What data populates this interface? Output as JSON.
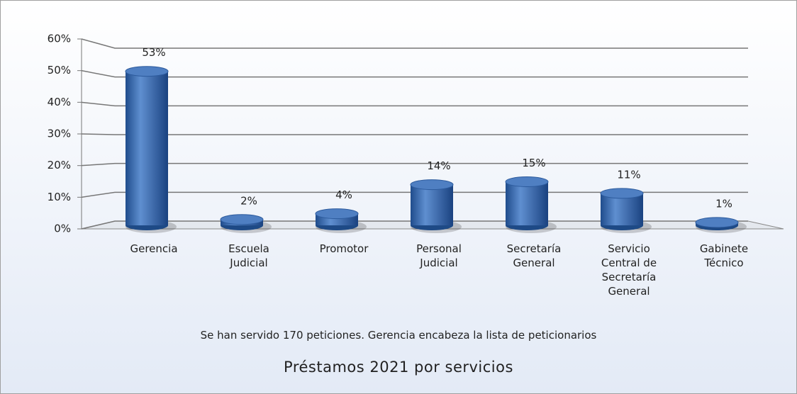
{
  "chart_data": {
    "type": "bar3d",
    "title": "Préstamos 2021 por servicios",
    "subtitle": "Se han servido 170 peticiones. Gerencia encabeza la lista de peticionarios",
    "categories": [
      "Gerencia",
      "Escuela Judicial",
      "Promotor",
      "Personal Judicial",
      "Secretaría General",
      "Servicio Central de Secretaría General",
      "Gabinete Técnico"
    ],
    "values": [
      53,
      2,
      4,
      14,
      15,
      11,
      1
    ],
    "value_labels": [
      "53%",
      "2%",
      "4%",
      "14%",
      "15%",
      "11%",
      "1%"
    ],
    "color": "#3b6fb6",
    "ylim": [
      0,
      60
    ],
    "yticks": [
      {
        "value": 0,
        "label": "0%"
      },
      {
        "value": 10,
        "label": "10%"
      },
      {
        "value": 20,
        "label": "20%"
      },
      {
        "value": 30,
        "label": "30%"
      },
      {
        "value": 40,
        "label": "40%"
      },
      {
        "value": 50,
        "label": "50%"
      },
      {
        "value": 60,
        "label": "60%"
      }
    ],
    "grid": true
  }
}
